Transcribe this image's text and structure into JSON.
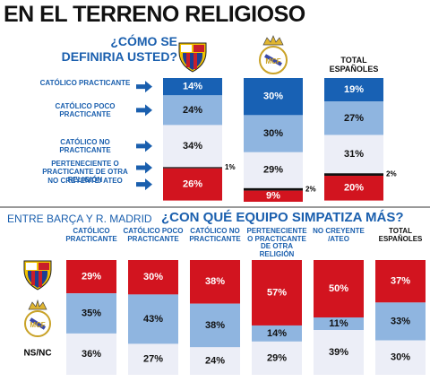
{
  "chart_data": [
    {
      "type": "stacked-bar",
      "title": "EN EL TERRENO RELIGIOSO",
      "subtitle": "¿CÓMO SE DEFINIRIA USTED?",
      "categories": [
        null,
        null,
        "TOTAL ESPAÑOLES"
      ],
      "series": [
        {
          "name": "CATÓLICO PRACTICANTE",
          "color": "#1861b4",
          "values": [
            14,
            30,
            19
          ],
          "value_labels": [
            "14%",
            "30%",
            "19%"
          ]
        },
        {
          "name": "CATÓLICO POCO PRACTICANTE",
          "color": "#8fb5e0",
          "values": [
            24,
            30,
            27
          ],
          "value_labels": [
            "24%",
            "30%",
            "27%"
          ]
        },
        {
          "name": "CATÓLICO NO PRACTICANTE",
          "color": "#eceef7",
          "values": [
            34,
            29,
            31
          ],
          "value_labels": [
            "34%",
            "29%",
            "31%"
          ]
        },
        {
          "name": "PERTENECIENTE O PRACTICANTE DE OTRA RELIGIÓN",
          "color": "#111111",
          "values": [
            1,
            2,
            2
          ],
          "value_labels": [
            "1%",
            "2%",
            "2%"
          ]
        },
        {
          "name": "NO CREYENTE/ ATEO",
          "color": "#d2141f",
          "values": [
            26,
            9,
            20
          ],
          "value_labels": [
            "26%",
            "9%",
            "20%"
          ]
        }
      ]
    },
    {
      "type": "stacked-bar",
      "title": "ENTRE BARÇA Y R. MADRID",
      "subtitle": "¿CON QUÉ EQUIPO SIMPATIZA MÁS?",
      "categories": [
        "CATÓLICO PRACTICANTE",
        "CATÓLICO POCO PRACTICANTE",
        "CATÓLICO NO PRACTICANTE",
        "PERTENECIENTE O PRACTICANTE DE OTRA RELIGIÓN",
        "NO CREYENTE /ATEO",
        "TOTAL ESPAÑOLES"
      ],
      "series": [
        {
          "name": null,
          "color": "#d2141f",
          "values": [
            29,
            30,
            38,
            57,
            50,
            37
          ],
          "value_labels": [
            "29%",
            "30%",
            "38%",
            "57%",
            "50%",
            "37%"
          ]
        },
        {
          "name": null,
          "color": "#8fb5e0",
          "values": [
            35,
            43,
            38,
            14,
            11,
            33
          ],
          "value_labels": [
            "35%",
            "43%",
            "38%",
            "14%",
            "11%",
            "33%"
          ]
        },
        {
          "name": "NS/NC",
          "color": "#eceef7",
          "values": [
            36,
            27,
            24,
            29,
            39,
            30
          ],
          "value_labels": [
            "36%",
            "27%",
            "24%",
            "29%",
            "39%",
            "30%"
          ]
        }
      ]
    }
  ]
}
